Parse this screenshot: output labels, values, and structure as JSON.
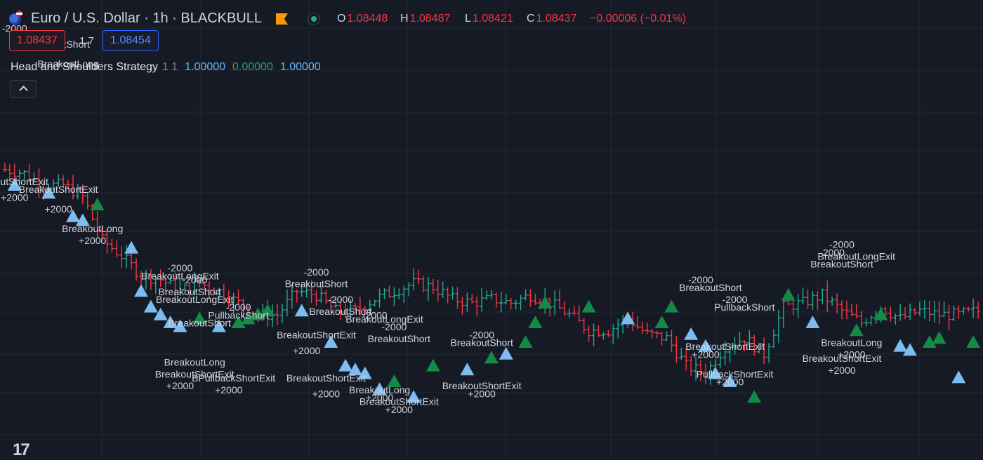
{
  "header": {
    "title": "Euro / U.S. Dollar · 1h · BLACKBULL",
    "ohlc": [
      {
        "key": "O",
        "value": "1.08448"
      },
      {
        "key": "H",
        "value": "1.08487"
      },
      {
        "key": "L",
        "value": "1.08421"
      },
      {
        "key": "C",
        "value": "1.08437"
      }
    ],
    "change": "−0.00006 (−0.01%)"
  },
  "trading": {
    "sell_price": "1.08437",
    "spread": "1.7",
    "buy_price": "1.08454"
  },
  "indicator": {
    "name": "Head and Shoulders Strategy",
    "params": "1 1",
    "values": [
      "1.00000",
      "0.00000",
      "1.00000"
    ]
  },
  "logo": "17",
  "colors": {
    "background": "#161a25",
    "grid": "#242834",
    "up": "#22ab94",
    "down": "#f23645",
    "label": "#d1d4dc",
    "triangle_blue": "#7cbcf0",
    "triangle_green": "#138a46",
    "exit_magenta": "#e040fb",
    "arrow_red": "#ff1744",
    "arrow_blue": "#2979ff"
  },
  "chart_data": {
    "type": "ohlc",
    "symbol": "EURUSD",
    "timeframe": "1h",
    "y_scale": "price (unlabeled in view)",
    "close_series": [
      {
        "x": 1,
        "y": 64
      },
      {
        "x": 5,
        "y": 63
      },
      {
        "x": 9,
        "y": 60
      },
      {
        "x": 13,
        "y": 60
      },
      {
        "x": 17,
        "y": 57
      },
      {
        "x": 21,
        "y": 46
      },
      {
        "x": 25,
        "y": 42
      },
      {
        "x": 29,
        "y": 37
      },
      {
        "x": 33,
        "y": 36
      },
      {
        "x": 37,
        "y": 33
      },
      {
        "x": 41,
        "y": 35
      },
      {
        "x": 45,
        "y": 33
      },
      {
        "x": 49,
        "y": 30
      },
      {
        "x": 53,
        "y": 27
      },
      {
        "x": 57,
        "y": 27
      },
      {
        "x": 61,
        "y": 33
      },
      {
        "x": 65,
        "y": 32
      },
      {
        "x": 69,
        "y": 28
      },
      {
        "x": 73,
        "y": 28
      },
      {
        "x": 77,
        "y": 31
      },
      {
        "x": 81,
        "y": 33
      },
      {
        "x": 85,
        "y": 35
      },
      {
        "x": 89,
        "y": 34
      },
      {
        "x": 93,
        "y": 31
      },
      {
        "x": 97,
        "y": 30
      },
      {
        "x": 101,
        "y": 31
      },
      {
        "x": 105,
        "y": 30
      },
      {
        "x": 109,
        "y": 32
      },
      {
        "x": 113,
        "y": 30
      },
      {
        "x": 117,
        "y": 27
      },
      {
        "x": 121,
        "y": 23
      },
      {
        "x": 125,
        "y": 23
      },
      {
        "x": 129,
        "y": 26
      },
      {
        "x": 133,
        "y": 22
      },
      {
        "x": 137,
        "y": 21
      },
      {
        "x": 141,
        "y": 14
      },
      {
        "x": 145,
        "y": 12
      },
      {
        "x": 149,
        "y": 19
      },
      {
        "x": 153,
        "y": 21
      },
      {
        "x": 157,
        "y": 17
      },
      {
        "x": 161,
        "y": 29
      },
      {
        "x": 165,
        "y": 30
      },
      {
        "x": 169,
        "y": 32
      },
      {
        "x": 173,
        "y": 28
      },
      {
        "x": 177,
        "y": 25
      },
      {
        "x": 181,
        "y": 29
      },
      {
        "x": 185,
        "y": 26
      },
      {
        "x": 189,
        "y": 28
      },
      {
        "x": 193,
        "y": 27
      },
      {
        "x": 197,
        "y": 27
      },
      {
        "x": 201,
        "y": 28
      }
    ],
    "ylim": [
      0,
      100
    ],
    "markers": [
      {
        "kind": "triangle_blue",
        "x": 3,
        "y": 60
      },
      {
        "kind": "triangle_blue",
        "x": 10,
        "y": 58
      },
      {
        "kind": "triangle_blue",
        "x": 15,
        "y": 52
      },
      {
        "kind": "triangle_blue",
        "x": 17,
        "y": 51
      },
      {
        "kind": "triangle_green",
        "x": 20,
        "y": 55
      },
      {
        "kind": "triangle_blue",
        "x": 27,
        "y": 44
      },
      {
        "kind": "triangle_blue",
        "x": 29,
        "y": 33
      },
      {
        "kind": "triangle_blue",
        "x": 31,
        "y": 29
      },
      {
        "kind": "triangle_blue",
        "x": 33,
        "y": 27
      },
      {
        "kind": "triangle_blue",
        "x": 35,
        "y": 25
      },
      {
        "kind": "triangle_blue",
        "x": 37,
        "y": 24
      },
      {
        "kind": "triangle_green",
        "x": 41,
        "y": 26
      },
      {
        "kind": "triangle_blue",
        "x": 45,
        "y": 24
      },
      {
        "kind": "triangle_green",
        "x": 49,
        "y": 25
      },
      {
        "kind": "triangle_green",
        "x": 51,
        "y": 26
      },
      {
        "kind": "triangle_green",
        "x": 53,
        "y": 27
      },
      {
        "kind": "triangle_green",
        "x": 55,
        "y": 28
      },
      {
        "kind": "triangle_blue",
        "x": 62,
        "y": 28
      },
      {
        "kind": "triangle_blue",
        "x": 68,
        "y": 20
      },
      {
        "kind": "triangle_blue",
        "x": 71,
        "y": 14
      },
      {
        "kind": "triangle_blue",
        "x": 73,
        "y": 13
      },
      {
        "kind": "triangle_blue",
        "x": 75,
        "y": 12
      },
      {
        "kind": "triangle_green",
        "x": 81,
        "y": 10
      },
      {
        "kind": "triangle_blue",
        "x": 78,
        "y": 8
      },
      {
        "kind": "triangle_blue",
        "x": 85,
        "y": 6
      },
      {
        "kind": "triangle_green",
        "x": 89,
        "y": 14
      },
      {
        "kind": "triangle_blue",
        "x": 96,
        "y": 13
      },
      {
        "kind": "triangle_green",
        "x": 101,
        "y": 16
      },
      {
        "kind": "triangle_blue",
        "x": 104,
        "y": 17
      },
      {
        "kind": "triangle_green",
        "x": 108,
        "y": 20
      },
      {
        "kind": "triangle_green",
        "x": 110,
        "y": 25
      },
      {
        "kind": "triangle_green",
        "x": 112,
        "y": 30
      },
      {
        "kind": "triangle_green",
        "x": 121,
        "y": 29
      },
      {
        "kind": "triangle_blue",
        "x": 129,
        "y": 26
      },
      {
        "kind": "triangle_green",
        "x": 136,
        "y": 25
      },
      {
        "kind": "triangle_green",
        "x": 138,
        "y": 29
      },
      {
        "kind": "triangle_blue",
        "x": 142,
        "y": 22
      },
      {
        "kind": "triangle_blue",
        "x": 145,
        "y": 19
      },
      {
        "kind": "triangle_blue",
        "x": 147,
        "y": 12
      },
      {
        "kind": "triangle_blue",
        "x": 150,
        "y": 10
      },
      {
        "kind": "triangle_green",
        "x": 155,
        "y": 6
      },
      {
        "kind": "triangle_green",
        "x": 162,
        "y": 32
      },
      {
        "kind": "triangle_blue",
        "x": 167,
        "y": 25
      },
      {
        "kind": "triangle_green",
        "x": 176,
        "y": 23
      },
      {
        "kind": "triangle_green",
        "x": 181,
        "y": 27
      },
      {
        "kind": "triangle_blue",
        "x": 185,
        "y": 19
      },
      {
        "kind": "triangle_blue",
        "x": 187,
        "y": 18
      },
      {
        "kind": "triangle_green",
        "x": 191,
        "y": 20
      },
      {
        "kind": "triangle_green",
        "x": 193,
        "y": 21
      },
      {
        "kind": "triangle_blue",
        "x": 197,
        "y": 11
      },
      {
        "kind": "triangle_green",
        "x": 200,
        "y": 20
      }
    ],
    "annotations": [
      {
        "text": "-2000",
        "x": 3,
        "y": 99
      },
      {
        "text": "BreakoutShort",
        "x": 12,
        "y": 95
      },
      {
        "text": "BreakoutLong",
        "x": 14,
        "y": 90
      },
      {
        "text": "utShortExit",
        "x": 5,
        "y": 60
      },
      {
        "text": "+2000",
        "x": 3,
        "y": 56
      },
      {
        "text": "BreakoutShortExit",
        "x": 12,
        "y": 58
      },
      {
        "text": "+2000",
        "x": 12,
        "y": 53
      },
      {
        "text": "BreakoutLong",
        "x": 19,
        "y": 48
      },
      {
        "text": "+2000",
        "x": 19,
        "y": 45
      },
      {
        "text": "-2000",
        "x": 37,
        "y": 38
      },
      {
        "text": "BreakoutLongExit",
        "x": 37,
        "y": 36
      },
      {
        "text": "-2000",
        "x": 40,
        "y": 35
      },
      {
        "text": "BreakoutShort",
        "x": 39,
        "y": 32
      },
      {
        "text": "BreakoutLongExit",
        "x": 40,
        "y": 30
      },
      {
        "text": "-2000",
        "x": 49,
        "y": 28
      },
      {
        "text": "PullbackShort",
        "x": 49,
        "y": 26
      },
      {
        "text": "BreakoutShort",
        "x": 41,
        "y": 24
      },
      {
        "text": "BreakoutLong",
        "x": 40,
        "y": 14
      },
      {
        "text": "BreakoutShortExit",
        "x": 40,
        "y": 11
      },
      {
        "text": "+2000",
        "x": 37,
        "y": 8
      },
      {
        "text": "BPullbackShortExit",
        "x": 48,
        "y": 10
      },
      {
        "text": "+2000",
        "x": 47,
        "y": 7
      },
      {
        "text": "-2000",
        "x": 65,
        "y": 37
      },
      {
        "text": "BreakoutShort",
        "x": 65,
        "y": 34
      },
      {
        "text": "-2000",
        "x": 70,
        "y": 30
      },
      {
        "text": "BreakoutShort",
        "x": 70,
        "y": 27
      },
      {
        "text": "-2000",
        "x": 77,
        "y": 26
      },
      {
        "text": "BreakoutLongExit",
        "x": 79,
        "y": 25
      },
      {
        "text": "-2000",
        "x": 81,
        "y": 23
      },
      {
        "text": "BreakoutShortExit",
        "x": 65,
        "y": 21
      },
      {
        "text": "+2000",
        "x": 63,
        "y": 17
      },
      {
        "text": "BreakoutShort",
        "x": 82,
        "y": 20
      },
      {
        "text": "-2000",
        "x": 99,
        "y": 21
      },
      {
        "text": "BreakoutShort",
        "x": 99,
        "y": 19
      },
      {
        "text": "BreakoutShortExit",
        "x": 67,
        "y": 10
      },
      {
        "text": "+2000",
        "x": 67,
        "y": 6
      },
      {
        "text": "BreakoutLong",
        "x": 78,
        "y": 7
      },
      {
        "text": "+2000",
        "x": 78,
        "y": 5
      },
      {
        "text": "BreakoutShortExit",
        "x": 82,
        "y": 4
      },
      {
        "text": "+2000",
        "x": 82,
        "y": 2
      },
      {
        "text": "BreakoutShortExit",
        "x": 99,
        "y": 8
      },
      {
        "text": "+2000",
        "x": 99,
        "y": 6
      },
      {
        "text": "-2000",
        "x": 144,
        "y": 35
      },
      {
        "text": "BreakoutShort",
        "x": 146,
        "y": 33
      },
      {
        "text": "-2000",
        "x": 151,
        "y": 30
      },
      {
        "text": "PullbackShort",
        "x": 153,
        "y": 28
      },
      {
        "text": "BreakoutShortExit",
        "x": 149,
        "y": 18
      },
      {
        "text": "+2000",
        "x": 145,
        "y": 16
      },
      {
        "text": "PullbackShortExit",
        "x": 151,
        "y": 11
      },
      {
        "text": "+2000",
        "x": 150,
        "y": 9
      },
      {
        "text": "-2000",
        "x": 173,
        "y": 44
      },
      {
        "text": "-2000",
        "x": 171,
        "y": 42
      },
      {
        "text": "BreakoutLongExit",
        "x": 176,
        "y": 41
      },
      {
        "text": "BreakoutShort",
        "x": 173,
        "y": 39
      },
      {
        "text": "BreakoutLong",
        "x": 175,
        "y": 19
      },
      {
        "text": "+2000",
        "x": 175,
        "y": 16
      },
      {
        "text": "BreakoutShortExit",
        "x": 173,
        "y": 15
      },
      {
        "text": "+2000",
        "x": 173,
        "y": 12
      }
    ]
  }
}
